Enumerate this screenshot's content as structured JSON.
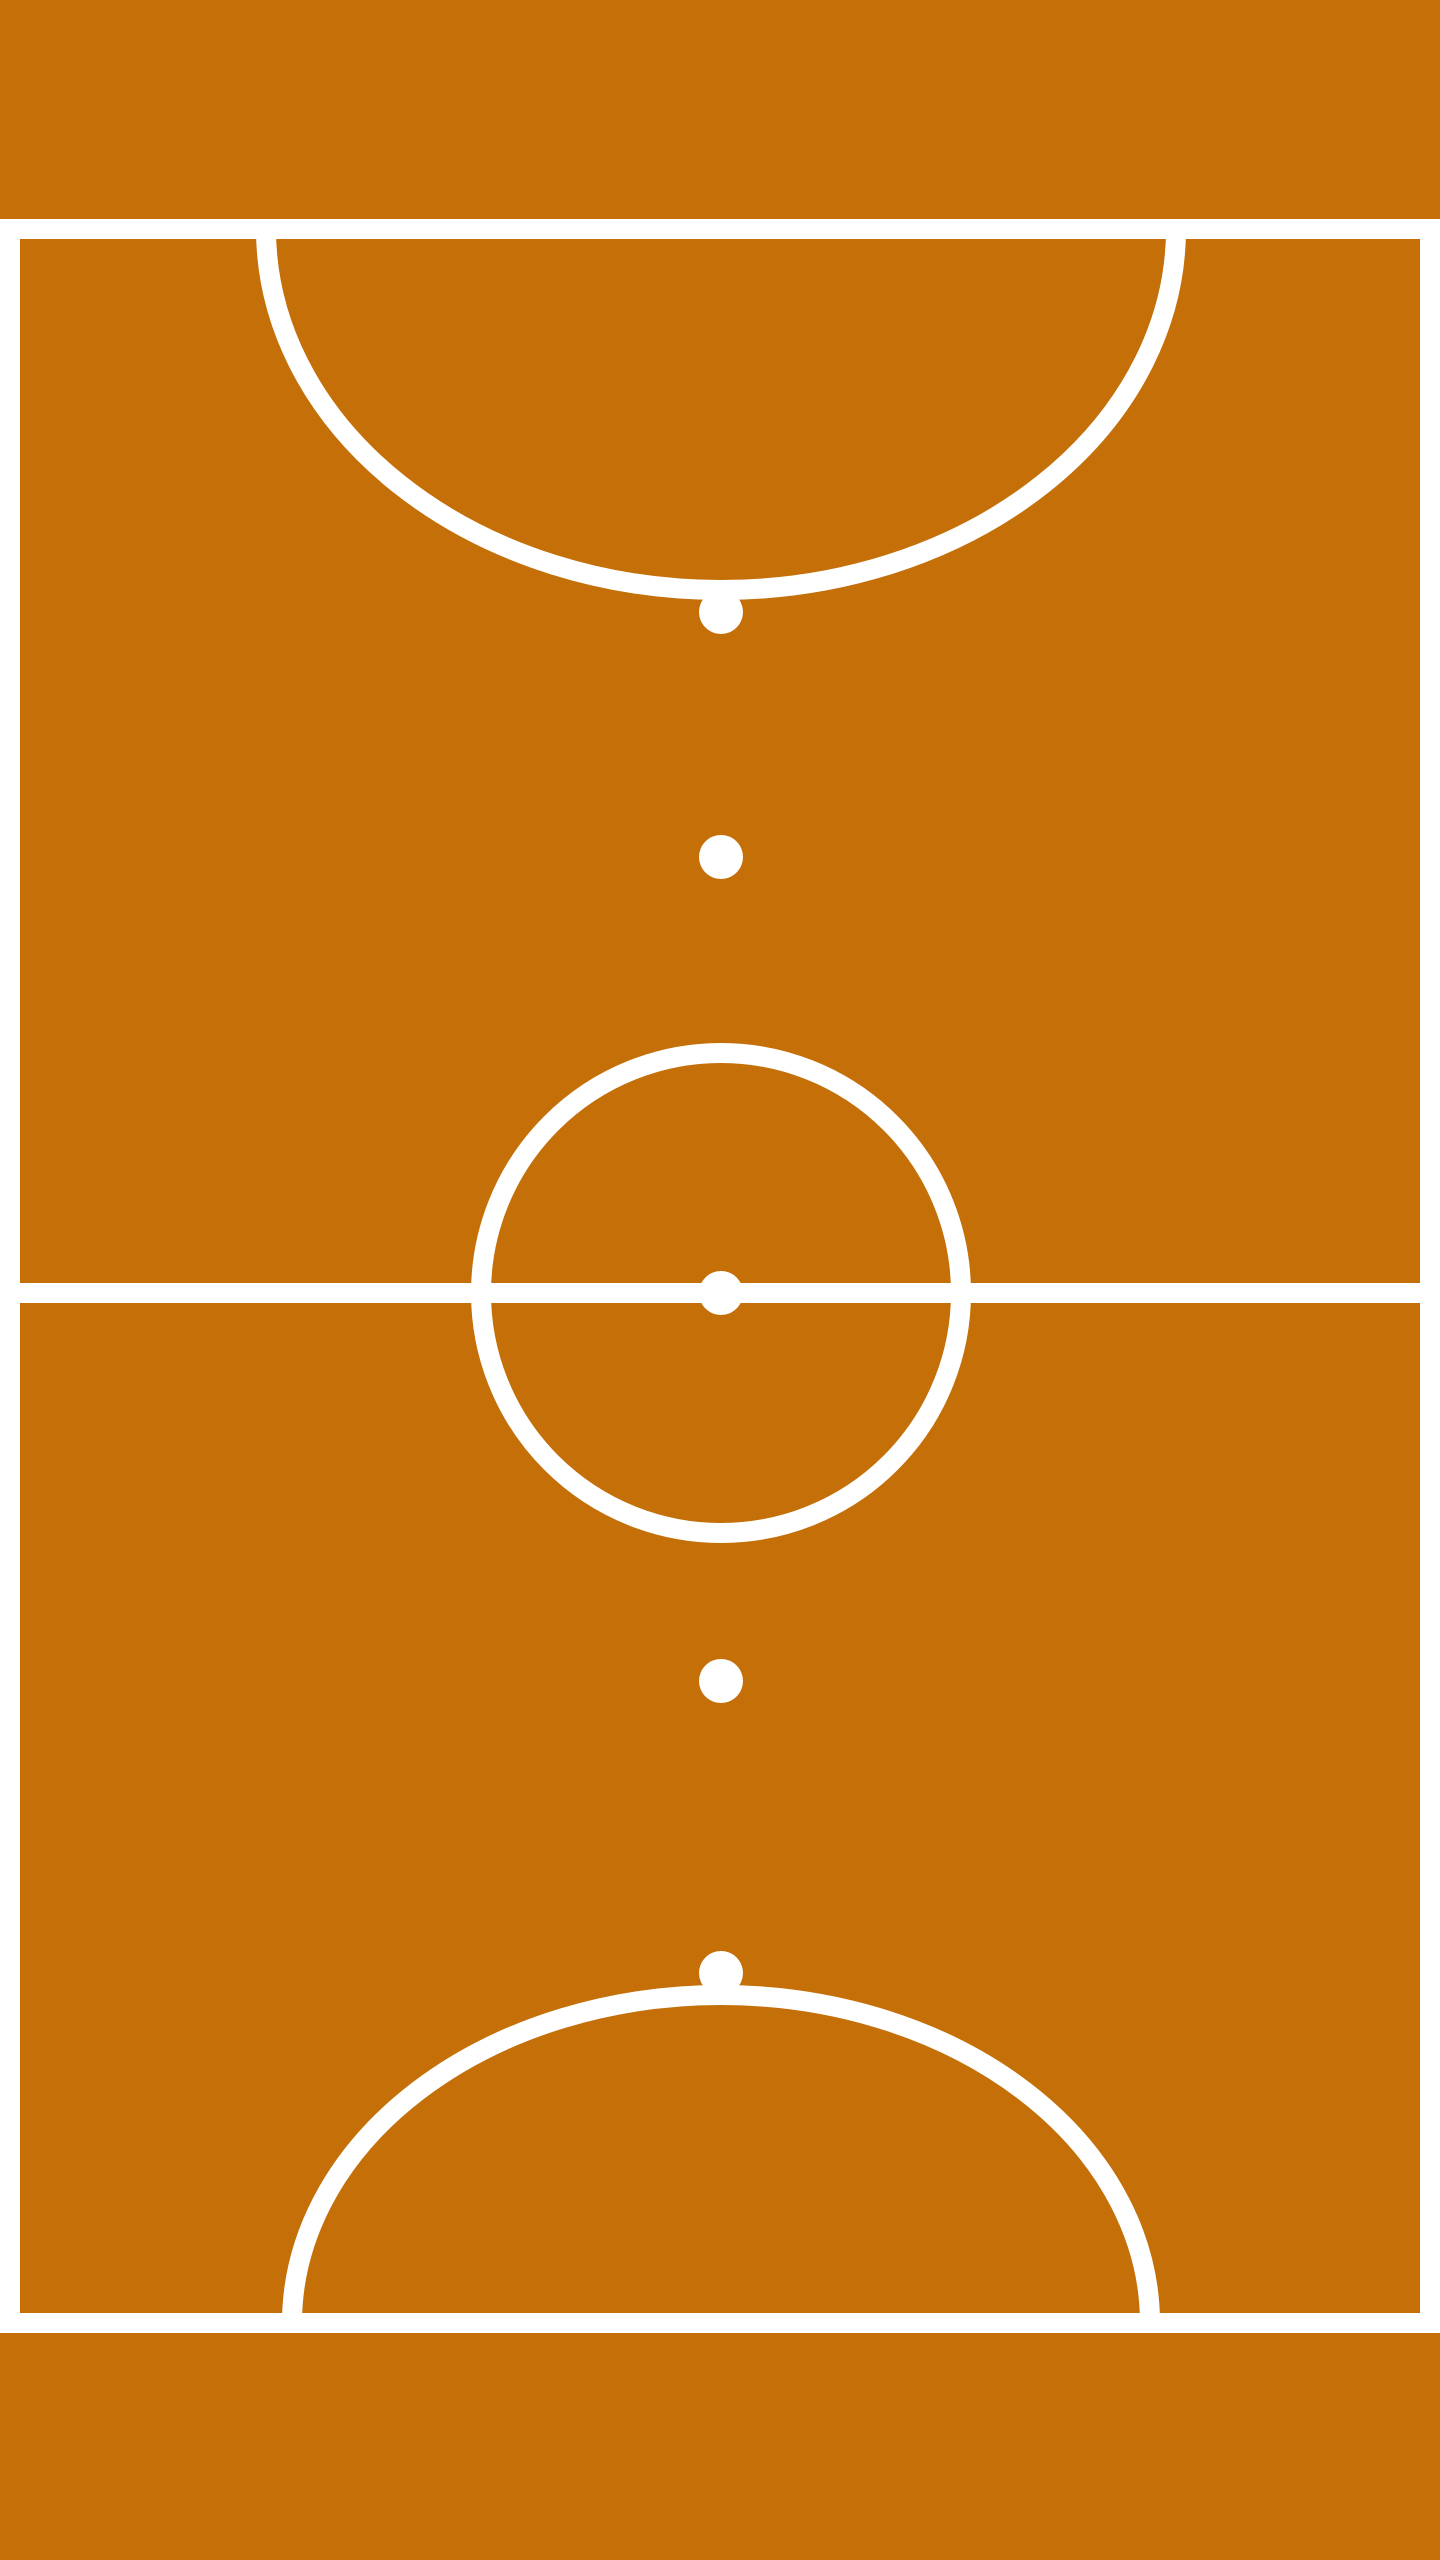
{
  "court": {
    "surface_color": "#c46f08",
    "line_color": "#ffffff",
    "markings": [
      "touchline-left",
      "touchline-right",
      "goal-line-top",
      "goal-line-bottom",
      "halfway-line",
      "center-circle",
      "center-spot",
      "penalty-arc-top",
      "penalty-arc-bottom",
      "penalty-spot-top",
      "penalty-spot-bottom",
      "second-penalty-spot-top",
      "second-penalty-spot-bottom"
    ]
  }
}
